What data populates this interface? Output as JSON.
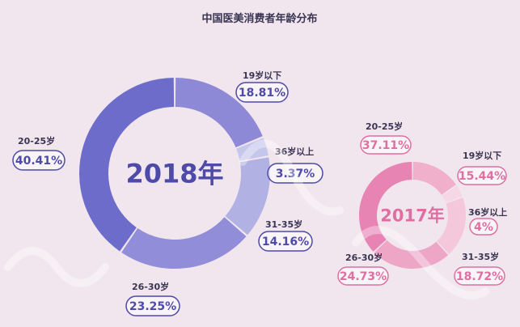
{
  "chart_data": {
    "title": "中国医美消费者年龄分布",
    "type": "pie",
    "charts": [
      {
        "id": "y2018",
        "center_label": "2018年",
        "colors": [
          "#8e89d6",
          "#c5c6ec",
          "#b1b1e3",
          "#918dd8",
          "#6e6ccb"
        ],
        "text_color": "#4e4aa8",
        "slices": [
          {
            "category": "19岁以下",
            "value": 18.81,
            "label": "18.81%"
          },
          {
            "category": "36岁以上",
            "value": 3.37,
            "label": "3.37%"
          },
          {
            "category": "31-35岁",
            "value": 14.16,
            "label": "14.16%"
          },
          {
            "category": "26-30岁",
            "value": 23.25,
            "label": "23.25%"
          },
          {
            "category": "20-25岁",
            "value": 40.41,
            "label": "40.41%"
          }
        ]
      },
      {
        "id": "y2017",
        "center_label": "2017年",
        "colors": [
          "#f0b0cc",
          "#f6d7e5",
          "#f4c7da",
          "#eda6c6",
          "#e884b4"
        ],
        "text_color": "#de6fa2",
        "slices": [
          {
            "category": "19岁以下",
            "value": 15.44,
            "label": "15.44%"
          },
          {
            "category": "36岁以上",
            "value": 4,
            "label": "4%"
          },
          {
            "category": "31-35岁",
            "value": 18.72,
            "label": "18.72%"
          },
          {
            "category": "26-30岁",
            "value": 24.73,
            "label": "24.73%"
          },
          {
            "category": "20-25岁",
            "value": 37.11,
            "label": "37.11%"
          }
        ]
      }
    ]
  }
}
